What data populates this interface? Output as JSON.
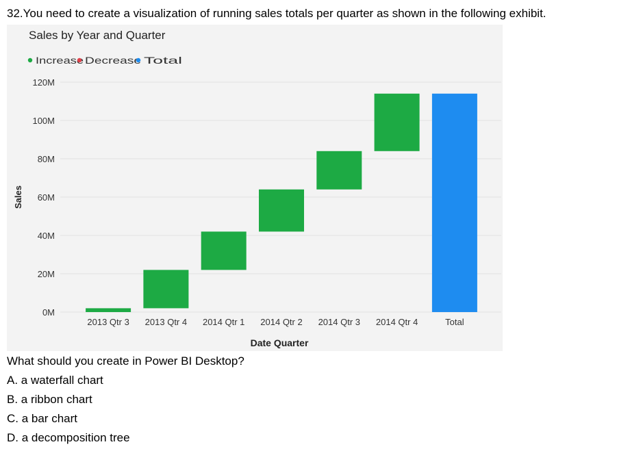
{
  "question": "32.You need to create a visualization of running sales totals per quarter as shown in the following exhibit.",
  "followup": "What should you create in Power BI Desktop?",
  "options": [
    "A. a waterfall chart",
    "B. a ribbon chart",
    "C. a bar chart",
    "D. a decomposition tree"
  ],
  "chart_data": {
    "type": "bar",
    "title": "Sales by Year and Quarter",
    "xlabel": "Date Quarter",
    "ylabel": "Sales",
    "ylim": [
      0,
      120
    ],
    "y_ticks": [
      "0M",
      "20M",
      "40M",
      "60M",
      "80M",
      "100M",
      "120M"
    ],
    "y_tick_values": [
      0,
      20,
      40,
      60,
      80,
      100,
      120
    ],
    "grid": true,
    "legend_position": "top-left",
    "legend": [
      {
        "label": "Increase",
        "color": "#1daa44"
      },
      {
        "label": "Decrease",
        "color": "#e0404a"
      },
      {
        "label": "Total",
        "color": "#1e8cf0"
      }
    ],
    "categories": [
      "2013 Qtr 3",
      "2013 Qtr 4",
      "2014 Qtr 1",
      "2014 Qtr 2",
      "2014 Qtr 3",
      "2014 Qtr 4",
      "Total"
    ],
    "bars": [
      {
        "start": 0,
        "end": 2,
        "kind": "Increase"
      },
      {
        "start": 2,
        "end": 22,
        "kind": "Increase"
      },
      {
        "start": 22,
        "end": 42,
        "kind": "Increase"
      },
      {
        "start": 42,
        "end": 64,
        "kind": "Increase"
      },
      {
        "start": 64,
        "end": 84,
        "kind": "Increase"
      },
      {
        "start": 84,
        "end": 114,
        "kind": "Increase"
      },
      {
        "start": 0,
        "end": 114,
        "kind": "Total"
      }
    ]
  }
}
